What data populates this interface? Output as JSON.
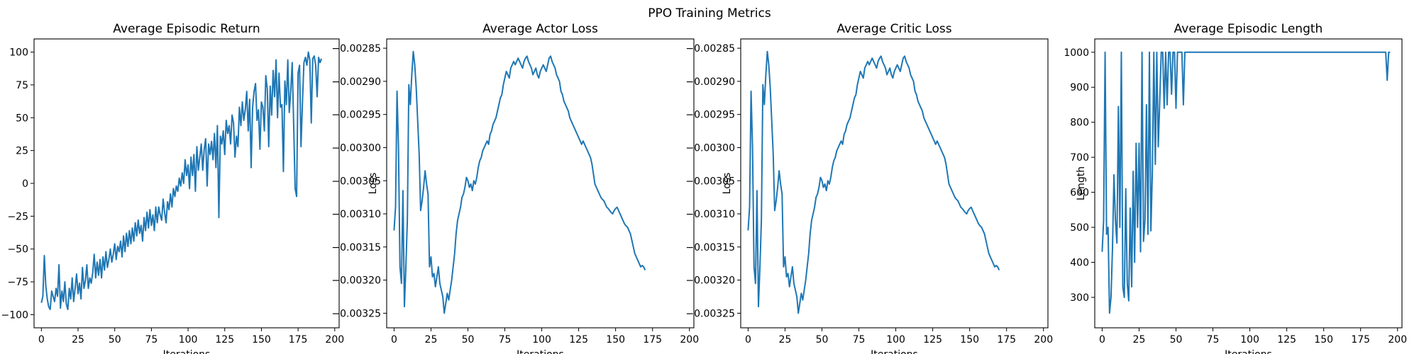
{
  "figure": {
    "suptitle": "PPO Training Metrics"
  },
  "colors": {
    "line": "#1f77b4",
    "axis": "#000000",
    "background": "#ffffff"
  },
  "chart_data": [
    {
      "type": "line",
      "title": "Average Episodic Return",
      "xlabel": "Iterations",
      "ylabel": "",
      "xlim": [
        -5,
        203
      ],
      "ylim": [
        -110,
        110
      ],
      "xticks": [
        0,
        25,
        50,
        75,
        100,
        125,
        150,
        175,
        200
      ],
      "yticks": [
        -100,
        -75,
        -50,
        -25,
        0,
        25,
        50,
        75,
        100
      ],
      "ytick_labels": [
        "−100",
        "−75",
        "−50",
        "−25",
        "0",
        "25",
        "50",
        "75",
        "100"
      ],
      "grid": false,
      "series": [
        {
          "x_start": 0,
          "x_step": 1,
          "y": [
            -91,
            -86,
            -55,
            -78,
            -88,
            -94,
            -96,
            -82,
            -86,
            -90,
            -80,
            -86,
            -62,
            -95,
            -82,
            -90,
            -75,
            -92,
            -96,
            -80,
            -88,
            -72,
            -90,
            -80,
            -69,
            -84,
            -76,
            -88,
            -64,
            -80,
            -74,
            -62,
            -80,
            -72,
            -76,
            -68,
            -54,
            -72,
            -60,
            -70,
            -58,
            -72,
            -56,
            -66,
            -52,
            -64,
            -58,
            -50,
            -60,
            -54,
            -46,
            -58,
            -48,
            -52,
            -44,
            -56,
            -40,
            -52,
            -38,
            -48,
            -36,
            -46,
            -34,
            -44,
            -30,
            -40,
            -28,
            -38,
            -32,
            -44,
            -26,
            -36,
            -22,
            -34,
            -20,
            -32,
            -24,
            -36,
            -18,
            -30,
            -18,
            -24,
            -28,
            -12,
            -22,
            -30,
            -14,
            -20,
            -8,
            -18,
            -4,
            -10,
            -2,
            -6,
            4,
            -2,
            8,
            0,
            18,
            6,
            14,
            -4,
            20,
            6,
            22,
            -6,
            28,
            10,
            20,
            30,
            10,
            26,
            34,
            -2,
            30,
            22,
            32,
            18,
            38,
            12,
            44,
            -26,
            36,
            30,
            40,
            22,
            48,
            38,
            44,
            30,
            52,
            46,
            20,
            36,
            28,
            58,
            44,
            62,
            48,
            56,
            70,
            40,
            64,
            12,
            58,
            70,
            76,
            48,
            56,
            26,
            62,
            58,
            40,
            82,
            72,
            28,
            74,
            52,
            86,
            66,
            94,
            50,
            84,
            58,
            60,
            9,
            78,
            60,
            94,
            54,
            70,
            92,
            45,
            -4,
            -10,
            84,
            90,
            28,
            62,
            92,
            96,
            90,
            100,
            94,
            46,
            95,
            97,
            90,
            66,
            96,
            92,
            95
          ]
        }
      ]
    },
    {
      "type": "line",
      "title": "Average Actor Loss",
      "xlabel": "Iterations",
      "ylabel": "Loss",
      "xlim": [
        -5,
        203
      ],
      "ylim": [
        -0.003272,
        -0.002836
      ],
      "xticks": [
        0,
        25,
        50,
        75,
        100,
        125,
        150,
        175,
        200
      ],
      "yticks": [
        -0.00325,
        -0.0032,
        -0.00315,
        -0.0031,
        -0.00305,
        -0.003,
        -0.00295,
        -0.0029,
        -0.00285
      ],
      "ytick_labels": [
        "−0.00325",
        "−0.00320",
        "−0.00315",
        "−0.00310",
        "−0.00305",
        "−0.00300",
        "−0.00295",
        "−0.00290",
        "−0.00285"
      ],
      "grid": false,
      "series": [
        {
          "x_start": 0,
          "x_step": 1,
          "y": [
            -0.003125,
            -0.00309,
            -0.002915,
            -0.003,
            -0.00318,
            -0.003205,
            -0.003065,
            -0.00324,
            -0.00318,
            -0.00311,
            -0.002905,
            -0.002935,
            -0.00289,
            -0.002855,
            -0.002875,
            -0.00291,
            -0.00296,
            -0.00301,
            -0.003095,
            -0.00308,
            -0.00306,
            -0.003035,
            -0.003055,
            -0.00307,
            -0.00318,
            -0.003165,
            -0.003195,
            -0.00319,
            -0.00321,
            -0.003195,
            -0.00318,
            -0.003205,
            -0.003215,
            -0.003225,
            -0.00325,
            -0.003235,
            -0.00322,
            -0.00323,
            -0.003215,
            -0.0032,
            -0.00318,
            -0.00316,
            -0.00313,
            -0.00311,
            -0.0031,
            -0.00309,
            -0.003075,
            -0.00307,
            -0.00306,
            -0.003045,
            -0.00305,
            -0.00306,
            -0.003055,
            -0.003065,
            -0.00305,
            -0.003055,
            -0.003045,
            -0.00303,
            -0.00302,
            -0.003015,
            -0.003005,
            -0.003,
            -0.002995,
            -0.00299,
            -0.002995,
            -0.00298,
            -0.002975,
            -0.002965,
            -0.00296,
            -0.002955,
            -0.002945,
            -0.002935,
            -0.002925,
            -0.00292,
            -0.002905,
            -0.002895,
            -0.002885,
            -0.00289,
            -0.002895,
            -0.00288,
            -0.002875,
            -0.00287,
            -0.002875,
            -0.00287,
            -0.002865,
            -0.00287,
            -0.002875,
            -0.00288,
            -0.00287,
            -0.002865,
            -0.002862,
            -0.00287,
            -0.002875,
            -0.00288,
            -0.00289,
            -0.002885,
            -0.00288,
            -0.00289,
            -0.002895,
            -0.002885,
            -0.00288,
            -0.002875,
            -0.00288,
            -0.002885,
            -0.002875,
            -0.002865,
            -0.002862,
            -0.00287,
            -0.002875,
            -0.00288,
            -0.00289,
            -0.002895,
            -0.0029,
            -0.002915,
            -0.00292,
            -0.00293,
            -0.002935,
            -0.00294,
            -0.002945,
            -0.002955,
            -0.00296,
            -0.002965,
            -0.00297,
            -0.002975,
            -0.00298,
            -0.002985,
            -0.00299,
            -0.002995,
            -0.00299,
            -0.002995,
            -0.003,
            -0.003005,
            -0.00301,
            -0.003015,
            -0.003025,
            -0.00304,
            -0.003055,
            -0.00306,
            -0.003065,
            -0.00307,
            -0.003075,
            -0.003078,
            -0.00308,
            -0.003085,
            -0.00309,
            -0.003092,
            -0.003095,
            -0.003098,
            -0.0031,
            -0.003095,
            -0.003092,
            -0.00309,
            -0.003095,
            -0.0031,
            -0.003105,
            -0.00311,
            -0.003115,
            -0.003118,
            -0.00312,
            -0.003125,
            -0.00313,
            -0.00314,
            -0.00315,
            -0.00316,
            -0.003165,
            -0.00317,
            -0.003175,
            -0.00318,
            -0.003178,
            -0.00318,
            -0.003185
          ]
        }
      ]
    },
    {
      "type": "line",
      "title": "Average Critic Loss",
      "xlabel": "Iterations",
      "ylabel": "Loss",
      "xlim": [
        -5,
        203
      ],
      "ylim": [
        -0.003272,
        -0.002836
      ],
      "xticks": [
        0,
        25,
        50,
        75,
        100,
        125,
        150,
        175,
        200
      ],
      "yticks": [
        -0.00325,
        -0.0032,
        -0.00315,
        -0.0031,
        -0.00305,
        -0.003,
        -0.00295,
        -0.0029,
        -0.00285
      ],
      "ytick_labels": [
        "−0.00325",
        "−0.00320",
        "−0.00315",
        "−0.00310",
        "−0.00305",
        "−0.00300",
        "−0.00295",
        "−0.00290",
        "−0.00285"
      ],
      "grid": false,
      "series": [
        {
          "x_start": 0,
          "x_step": 1,
          "y": [
            -0.003125,
            -0.00309,
            -0.002915,
            -0.003,
            -0.00318,
            -0.003205,
            -0.003065,
            -0.00324,
            -0.00318,
            -0.00311,
            -0.002905,
            -0.002935,
            -0.00289,
            -0.002855,
            -0.002875,
            -0.00291,
            -0.00296,
            -0.00301,
            -0.003095,
            -0.00308,
            -0.00306,
            -0.003035,
            -0.003055,
            -0.00307,
            -0.00318,
            -0.003165,
            -0.003195,
            -0.00319,
            -0.00321,
            -0.003195,
            -0.00318,
            -0.003205,
            -0.003215,
            -0.003225,
            -0.00325,
            -0.003235,
            -0.00322,
            -0.00323,
            -0.003215,
            -0.0032,
            -0.00318,
            -0.00316,
            -0.00313,
            -0.00311,
            -0.0031,
            -0.00309,
            -0.003075,
            -0.00307,
            -0.00306,
            -0.003045,
            -0.00305,
            -0.00306,
            -0.003055,
            -0.003065,
            -0.00305,
            -0.003055,
            -0.003045,
            -0.00303,
            -0.00302,
            -0.003015,
            -0.003005,
            -0.003,
            -0.002995,
            -0.00299,
            -0.002995,
            -0.00298,
            -0.002975,
            -0.002965,
            -0.00296,
            -0.002955,
            -0.002945,
            -0.002935,
            -0.002925,
            -0.00292,
            -0.002905,
            -0.002895,
            -0.002885,
            -0.00289,
            -0.002895,
            -0.00288,
            -0.002875,
            -0.00287,
            -0.002875,
            -0.00287,
            -0.002865,
            -0.00287,
            -0.002875,
            -0.00288,
            -0.00287,
            -0.002865,
            -0.002862,
            -0.00287,
            -0.002875,
            -0.00288,
            -0.00289,
            -0.002885,
            -0.00288,
            -0.00289,
            -0.002895,
            -0.002885,
            -0.00288,
            -0.002875,
            -0.00288,
            -0.002885,
            -0.002875,
            -0.002865,
            -0.002862,
            -0.00287,
            -0.002875,
            -0.00288,
            -0.00289,
            -0.002895,
            -0.0029,
            -0.002915,
            -0.00292,
            -0.00293,
            -0.002935,
            -0.00294,
            -0.002945,
            -0.002955,
            -0.00296,
            -0.002965,
            -0.00297,
            -0.002975,
            -0.00298,
            -0.002985,
            -0.00299,
            -0.002995,
            -0.00299,
            -0.002995,
            -0.003,
            -0.003005,
            -0.00301,
            -0.003015,
            -0.003025,
            -0.00304,
            -0.003055,
            -0.00306,
            -0.003065,
            -0.00307,
            -0.003075,
            -0.003078,
            -0.00308,
            -0.003085,
            -0.00309,
            -0.003092,
            -0.003095,
            -0.003098,
            -0.0031,
            -0.003095,
            -0.003092,
            -0.00309,
            -0.003095,
            -0.0031,
            -0.003105,
            -0.00311,
            -0.003115,
            -0.003118,
            -0.00312,
            -0.003125,
            -0.00313,
            -0.00314,
            -0.00315,
            -0.00316,
            -0.003165,
            -0.00317,
            -0.003175,
            -0.00318,
            -0.003178,
            -0.00318,
            -0.003185
          ]
        }
      ]
    },
    {
      "type": "line",
      "title": "Average Episodic Length",
      "xlabel": "Iterations",
      "ylabel": "Length",
      "xlim": [
        -5,
        203
      ],
      "ylim": [
        213,
        1038
      ],
      "xticks": [
        0,
        25,
        50,
        75,
        100,
        125,
        150,
        175,
        200
      ],
      "yticks": [
        300,
        400,
        500,
        600,
        700,
        800,
        900,
        1000
      ],
      "ytick_labels": [
        "300",
        "400",
        "500",
        "600",
        "700",
        "800",
        "900",
        "1000"
      ],
      "grid": false,
      "series": [
        {
          "x_start": 0,
          "x_step": 1,
          "y": [
            430,
            520,
            1000,
            480,
            500,
            255,
            300,
            440,
            650,
            520,
            455,
            845,
            500,
            1000,
            330,
            300,
            610,
            340,
            290,
            555,
            330,
            660,
            400,
            740,
            500,
            740,
            430,
            1000,
            460,
            520,
            850,
            480,
            1000,
            490,
            660,
            1000,
            680,
            1000,
            730,
            860,
            1000,
            1000,
            840,
            1000,
            850,
            1000,
            1000,
            880,
            1000,
            1000,
            840,
            1000,
            1000,
            1000,
            1000,
            850,
            1000,
            1000,
            1000,
            1000,
            1000,
            1000,
            1000,
            1000,
            1000,
            1000,
            1000,
            1000,
            1000,
            1000,
            1000,
            1000,
            1000,
            1000,
            1000,
            1000,
            1000,
            1000,
            1000,
            1000,
            1000,
            1000,
            1000,
            1000,
            1000,
            1000,
            1000,
            1000,
            1000,
            1000,
            1000,
            1000,
            1000,
            1000,
            1000,
            1000,
            1000,
            1000,
            1000,
            1000,
            1000,
            1000,
            1000,
            1000,
            1000,
            1000,
            1000,
            1000,
            1000,
            1000,
            1000,
            1000,
            1000,
            1000,
            1000,
            1000,
            1000,
            1000,
            1000,
            1000,
            1000,
            1000,
            1000,
            1000,
            1000,
            1000,
            1000,
            1000,
            1000,
            1000,
            1000,
            1000,
            1000,
            1000,
            1000,
            1000,
            1000,
            1000,
            1000,
            1000,
            1000,
            1000,
            1000,
            1000,
            1000,
            1000,
            1000,
            1000,
            1000,
            1000,
            1000,
            1000,
            1000,
            1000,
            1000,
            1000,
            1000,
            1000,
            1000,
            1000,
            1000,
            1000,
            1000,
            1000,
            1000,
            1000,
            1000,
            1000,
            1000,
            1000,
            1000,
            1000,
            1000,
            1000,
            1000,
            1000,
            1000,
            1000,
            1000,
            1000,
            1000,
            1000,
            1000,
            1000,
            1000,
            1000,
            1000,
            1000,
            1000,
            1000,
            1000,
            1000,
            1000,
            920,
            1000,
            1000
          ]
        }
      ]
    }
  ]
}
